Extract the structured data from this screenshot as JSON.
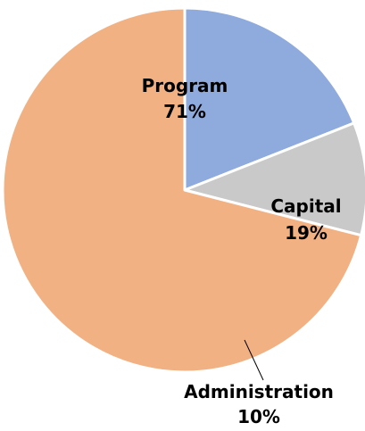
{
  "chart_data": {
    "type": "pie",
    "start_angle_deg": 0,
    "direction": "clockwise",
    "slices": [
      {
        "label": "Capital",
        "value": 19,
        "value_label": "19%",
        "color": "#8faadc"
      },
      {
        "label": "Administration",
        "value": 10,
        "value_label": "10%",
        "color": "#c9c9c9"
      },
      {
        "label": "Program",
        "value": 71,
        "value_label": "71%",
        "color": "#f2b183"
      }
    ],
    "slice_border_color": "#ffffff"
  }
}
